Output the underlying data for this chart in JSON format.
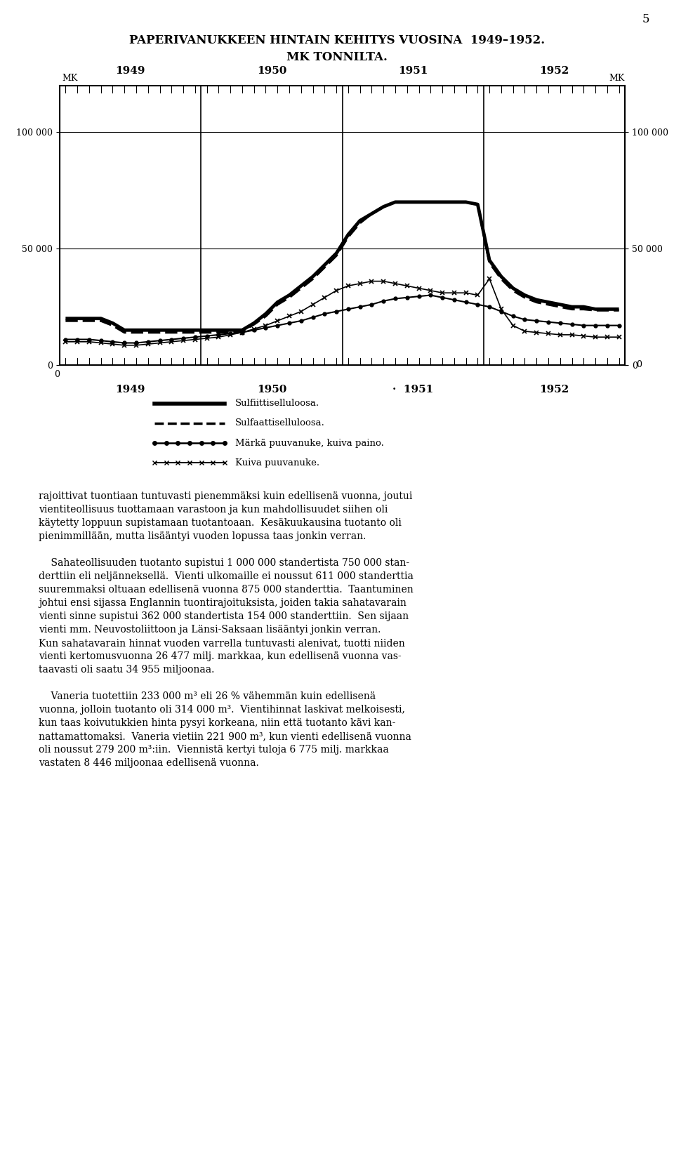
{
  "title_line1": "PAPERIVANUKKEEN HINTAIN KEHITYS VUOSINA  1949–1952.",
  "title_line2": "MK TONNILTA.",
  "ylim": [
    0,
    120000
  ],
  "yticks": [
    0,
    50000,
    100000
  ],
  "ytick_labels": [
    "0",
    "50 000",
    "100 000"
  ],
  "year_labels_top": [
    "1949",
    "1950",
    "1951",
    "1952"
  ],
  "year_labels_bottom": [
    "1949",
    "1950",
    "·  1951",
    "1952"
  ],
  "legend_entries": [
    "Sulfiittiselluloosa.",
    "Sulfaattiselluloosa.",
    "Märkä puuvanuke, kuiva paino.",
    "Kuiva puuvanuke."
  ],
  "sulfiitti": [
    20000,
    20000,
    20000,
    20000,
    18000,
    15000,
    15000,
    15000,
    15000,
    15000,
    15000,
    15000,
    15000,
    15000,
    15000,
    15000,
    18000,
    22000,
    27000,
    30000,
    34000,
    38000,
    43000,
    48000,
    56000,
    62000,
    65000,
    68000,
    70000,
    70000,
    70000,
    70000,
    70000,
    70000,
    70000,
    69000,
    45000,
    38000,
    33000,
    30000,
    28000,
    27000,
    26000,
    25000,
    25000,
    24000,
    24000,
    24000
  ],
  "sulfaatti": [
    19000,
    19000,
    19000,
    19000,
    17000,
    14000,
    14000,
    14000,
    14000,
    14000,
    14000,
    14000,
    14000,
    14000,
    14000,
    14500,
    17500,
    21000,
    26000,
    29000,
    33000,
    37000,
    42000,
    47000,
    55000,
    61000,
    65000,
    68000,
    70000,
    70000,
    70000,
    70000,
    70000,
    70000,
    70000,
    69000,
    44000,
    37000,
    32000,
    29000,
    27000,
    26000,
    25000,
    24000,
    24000,
    23500,
    23500,
    23500
  ],
  "marka_puuvanuke": [
    11000,
    11000,
    11000,
    10500,
    10000,
    9500,
    9500,
    10000,
    10500,
    11000,
    11500,
    12000,
    12500,
    13000,
    13500,
    14000,
    15000,
    16000,
    17000,
    18000,
    19000,
    20500,
    22000,
    23000,
    24000,
    25000,
    26000,
    27500,
    28500,
    29000,
    29500,
    30000,
    29000,
    28000,
    27000,
    26000,
    25000,
    23000,
    21000,
    19500,
    19000,
    18500,
    18000,
    17500,
    17000,
    17000,
    17000,
    17000
  ],
  "kuiva_puuvanuke": [
    10000,
    10000,
    10000,
    9500,
    9000,
    8500,
    8500,
    9000,
    9500,
    10000,
    10500,
    11000,
    11500,
    12000,
    13000,
    14000,
    15500,
    17000,
    19000,
    21000,
    23000,
    26000,
    29000,
    32000,
    34000,
    35000,
    36000,
    36000,
    35000,
    34000,
    33000,
    32000,
    31000,
    31000,
    31000,
    30000,
    37000,
    24000,
    17000,
    14500,
    14000,
    13500,
    13000,
    13000,
    12500,
    12000,
    12000,
    12000
  ],
  "page_number": "5",
  "body_text_lines": [
    "rajoittivat tuontiaan tuntuvasti pienemmäksi kuin edellisenä vuonna, joutui",
    "vientiteollisuus tuottamaan varastoon ja kun mahdollisuudet siihen oli",
    "käytetty loppuun supistamaan tuotantoaan.  Kesäkuukausina tuotanto oli",
    "pienimmillään, mutta lisääntyi vuoden lopussa taas jonkin verran.",
    "",
    "    Sahateollisuuden tuotanto supistui 1 000 000 standertista 750 000 stan-",
    "derttiin eli neljänneksellä.  Vienti ulkomaille ei noussut 611 000 standerttia",
    "suuremmaksi oltuaan edellisenä vuonna 875 000 standerttia.  Taantuminen",
    "johtui ensi sijassa Englannin tuontirajoituksista, joiden takia sahatavarain",
    "vienti sinne supistui 362 000 standertista 154 000 standerttiin.  Sen sijaan",
    "vienti mm. Neuvostoliittoon ja Länsi-Saksaan lisääntyi jonkin verran.",
    "Kun sahatavarain hinnat vuoden varrella tuntuvasti alenivat, tuotti niiden",
    "vienti kertomusvuonna 26 477 milj. markkaa, kun edellisenä vuonna vas-",
    "taavasti oli saatu 34 955 miljoonaa.",
    "",
    "    Vaneria tuotettiin 233 000 m³ eli 26 % vähemmän kuin edellisenä",
    "vuonna, jolloin tuotanto oli 314 000 m³.  Vientihinnat laskivat melkoisesti,",
    "kun taas koivutukkien hinta pysyi korkeana, niin että tuotanto kävi kan-",
    "nattamattomaksi.  Vaneria vietiin 221 900 m³, kun vienti edellisenä vuonna",
    "oli noussut 279 200 m³:iin.  Viennistä kertyi tuloja 6 775 milj. markkaa",
    "vastaten 8 446 miljoonaa edellisenä vuonna."
  ]
}
